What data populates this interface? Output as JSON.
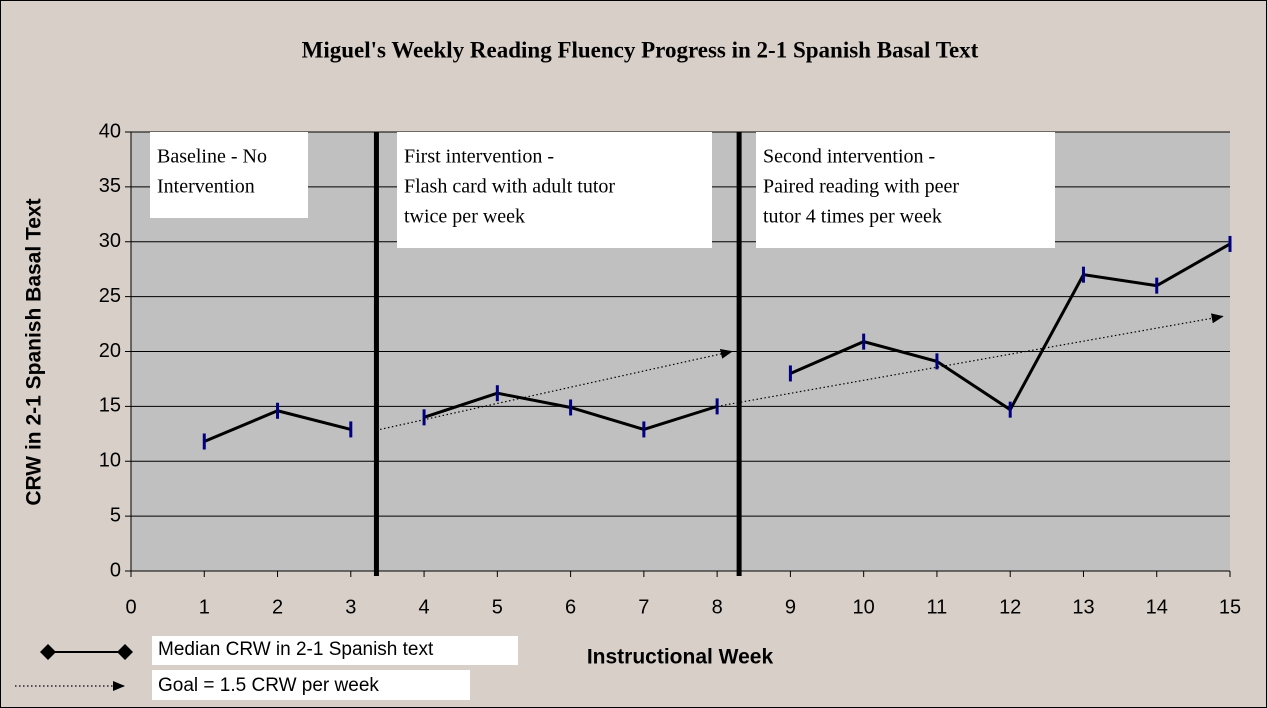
{
  "chart_data": {
    "type": "line",
    "title": "Miguel's Weekly Reading Fluency Progress in 2-1 Spanish Basal Text",
    "x_label": "Instructional Week",
    "y_label": "CRW in 2-1 Spanish Basal Text",
    "xlim": [
      0,
      15
    ],
    "ylim": [
      0,
      40
    ],
    "xticks": [
      0,
      1,
      2,
      3,
      4,
      5,
      6,
      7,
      8,
      9,
      10,
      11,
      12,
      13,
      14,
      15
    ],
    "yticks": [
      0,
      5,
      10,
      15,
      20,
      25,
      30,
      35,
      40
    ],
    "grid": true,
    "series": [
      {
        "name": "Median CRW in 2-1 Spanish text",
        "color": "#000000",
        "marker_color": "#000080",
        "x": [
          1,
          2,
          3,
          null,
          4,
          5,
          6,
          7,
          8,
          null,
          9,
          10,
          11,
          12,
          13,
          14,
          15
        ],
        "values": [
          11.8,
          14.6,
          12.9,
          null,
          14,
          16.2,
          14.9,
          12.9,
          15,
          null,
          18,
          20.9,
          19.1,
          14.7,
          27,
          26,
          29.8
        ]
      },
      {
        "name": "Goal = 1.5 CRW per week",
        "color": "#000000",
        "x": [
          3.4,
          8.2,
          null,
          8,
          14.9
        ],
        "values": [
          12.9,
          20,
          null,
          15,
          23.2
        ]
      }
    ],
    "phase_lines": [
      3.35,
      8.3
    ],
    "annotations": [
      {
        "lines": [
          "Baseline - No",
          "Intervention"
        ]
      },
      {
        "lines": [
          "First intervention -",
          "Flash card with adult tutor",
          "twice per week"
        ]
      },
      {
        "lines": [
          "Second intervention -",
          "Paired reading with peer",
          "tutor 4 times per week"
        ]
      }
    ]
  }
}
